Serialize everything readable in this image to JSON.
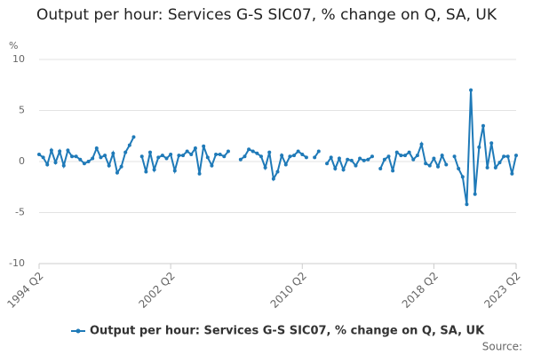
{
  "chart_data": {
    "type": "line",
    "title": "Output per hour: Services G-S SIC07, % change on Q, SA, UK",
    "y_label": "%",
    "source": "Source:",
    "categories": [
      "1994 Q2",
      null,
      null,
      null,
      null,
      null,
      null,
      null,
      null,
      null,
      null,
      null,
      null,
      null,
      null,
      null,
      null,
      null,
      null,
      null,
      null,
      null,
      null,
      null,
      null,
      null,
      null,
      null,
      null,
      null,
      null,
      null,
      "2002 Q2",
      null,
      null,
      null,
      null,
      null,
      null,
      null,
      null,
      null,
      null,
      null,
      null,
      null,
      null,
      null,
      null,
      null,
      null,
      null,
      null,
      null,
      null,
      null,
      null,
      null,
      null,
      null,
      null,
      null,
      null,
      null,
      "2010 Q2",
      null,
      null,
      null,
      null,
      null,
      null,
      null,
      null,
      null,
      null,
      null,
      null,
      null,
      null,
      null,
      null,
      null,
      null,
      null,
      null,
      null,
      null,
      null,
      null,
      null,
      null,
      null,
      null,
      null,
      null,
      null,
      "2018 Q2",
      null,
      null,
      null,
      null,
      null,
      null,
      null,
      null,
      null,
      null,
      null,
      null,
      null,
      null,
      null,
      null,
      null,
      null,
      null,
      "2023 Q2"
    ],
    "series": [
      {
        "name": "Output per hour: Services G-S SIC07, % change on Q, SA, UK",
        "color": "#1f7ab8",
        "values": [
          0.7,
          0.4,
          -0.3,
          1.1,
          -0.1,
          1.0,
          -0.4,
          1.1,
          0.5,
          0.5,
          0.2,
          -0.2,
          0,
          0.3,
          1.3,
          0.4,
          0.6,
          -0.4,
          0.8,
          -1.1,
          -0.5,
          0.9,
          1.6,
          2.4,
          null,
          0.5,
          -1.0,
          0.9,
          -0.8,
          0.4,
          0.6,
          0.3,
          0.7,
          -0.9,
          0.6,
          0.6,
          1.0,
          0.7,
          1.3,
          -1.2,
          1.5,
          0.4,
          -0.4,
          0.7,
          0.7,
          0.5,
          1.0,
          null,
          null,
          0.2,
          0.5,
          1.2,
          1.0,
          0.8,
          0.5,
          -0.6,
          0.9,
          -1.7,
          -1.0,
          0.6,
          -0.3,
          0.5,
          0.6,
          1.0,
          0.7,
          0.4,
          null,
          0.4,
          1.0,
          null,
          -0.2,
          0.4,
          -0.7,
          0.3,
          -0.8,
          0.2,
          0.1,
          -0.4,
          0.3,
          0.1,
          0.2,
          0.5,
          null,
          -0.7,
          0.2,
          0.5,
          -0.9,
          0.9,
          0.6,
          0.6,
          0.9,
          0.2,
          0.6,
          1.7,
          -0.2,
          -0.4,
          0.3,
          -0.5,
          0.6,
          -0.3,
          null,
          0.5,
          -0.7,
          -1.5,
          -4.2,
          7.0,
          -3.2,
          1.4,
          3.5,
          -0.6,
          1.8,
          -0.6,
          -0.1,
          0.5,
          0.5,
          -1.2,
          0.6
        ]
      }
    ],
    "ylim": [
      -10,
      10
    ],
    "yticks": [
      -10,
      -5,
      0,
      5,
      10
    ],
    "grid": true
  }
}
